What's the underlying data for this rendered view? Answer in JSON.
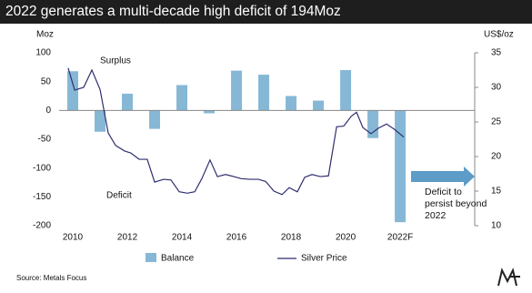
{
  "chart_data": {
    "type": "bar-line",
    "title": "2022 generates a multi-decade high deficit of 194Moz",
    "y_label": "Moz",
    "y2_label": "US$/oz",
    "annotations": [
      "Surplus",
      "Deficit",
      "Deficit to persist beyond 2022"
    ],
    "source": "Source: Metals Focus",
    "categories": [
      "2010",
      null,
      "2012",
      null,
      "2014",
      null,
      "2016",
      null,
      "2018",
      null,
      "2020",
      null,
      "2022F"
    ],
    "xlim": [
      2009.5,
      2024.73
    ],
    "ylim": [
      -200,
      100
    ],
    "yticks": [
      100,
      50,
      0,
      -50,
      -100,
      -150,
      -200
    ],
    "y2lim": [
      10,
      35
    ],
    "y2ticks": [
      35,
      30,
      25,
      20,
      15,
      10
    ],
    "series": [
      {
        "name": "Balance",
        "color": "#86b8d6",
        "values": [
          68,
          -37,
          29,
          -32,
          44,
          -5,
          69,
          62,
          25,
          17,
          70,
          -48,
          -194
        ]
      },
      {
        "name": "Silver Price",
        "color": "#2e2f6e",
        "axis": "y2",
        "x": [
          2009.83,
          2010.07,
          2010.4,
          2010.7,
          2011.0,
          2011.3,
          2011.57,
          2011.9,
          2012.13,
          2012.43,
          2012.73,
          2013.0,
          2013.33,
          2013.6,
          2013.9,
          2014.2,
          2014.47,
          2014.73,
          2015.03,
          2015.3,
          2015.6,
          2015.9,
          2016.17,
          2016.5,
          2016.8,
          2017.07,
          2017.37,
          2017.67,
          2017.93,
          2018.23,
          2018.5,
          2018.77,
          2019.07,
          2019.37,
          2019.67,
          2019.93,
          2020.2,
          2020.4,
          2020.63,
          2020.93,
          2021.2,
          2021.5,
          2021.8,
          2022.13
        ],
        "values": [
          32.8,
          29.6,
          30.0,
          32.5,
          29.7,
          23.4,
          21.6,
          20.8,
          20.5,
          19.6,
          19.6,
          16.3,
          16.7,
          16.6,
          14.9,
          14.7,
          14.9,
          16.8,
          19.5,
          17.1,
          17.4,
          17.1,
          16.8,
          16.7,
          16.7,
          16.4,
          15.0,
          14.5,
          15.5,
          14.9,
          17.0,
          17.4,
          17.1,
          17.2,
          24.3,
          24.4,
          25.8,
          26.4,
          24.2,
          23.3,
          24.1,
          24.7,
          23.9,
          22.8
        ]
      }
    ]
  }
}
